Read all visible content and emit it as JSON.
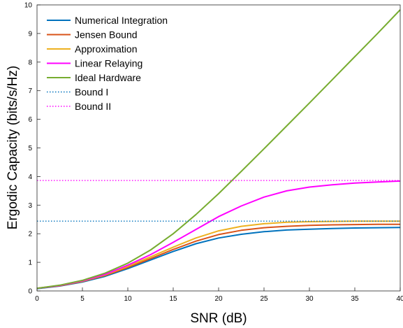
{
  "chart_data": {
    "type": "line",
    "xlabel": "SNR (dB)",
    "ylabel": "Ergodic Capacity (bits/s/Hz)",
    "xlim": [
      0,
      40
    ],
    "ylim": [
      0,
      10
    ],
    "x_ticks": [
      "0",
      "5",
      "10",
      "15",
      "20",
      "25",
      "30",
      "35",
      "40"
    ],
    "y_ticks": [
      "0",
      "1",
      "2",
      "3",
      "4",
      "5",
      "6",
      "7",
      "8",
      "9",
      "10"
    ],
    "grid": false,
    "legend_position": "top-left",
    "series": [
      {
        "name": "Numerical Integration",
        "color": "#0072BD",
        "style": "solid",
        "x": [
          0,
          2.5,
          5,
          7.5,
          10,
          12.5,
          15,
          17.5,
          20,
          22.5,
          25,
          27.5,
          30,
          32.5,
          35,
          37.5,
          40
        ],
        "y": [
          0.08,
          0.17,
          0.31,
          0.51,
          0.78,
          1.08,
          1.38,
          1.65,
          1.85,
          1.98,
          2.07,
          2.13,
          2.16,
          2.18,
          2.2,
          2.21,
          2.22
        ]
      },
      {
        "name": "Jensen Bound",
        "color": "#D95319",
        "style": "solid",
        "x": [
          0,
          2.5,
          5,
          7.5,
          10,
          12.5,
          15,
          17.5,
          20,
          22.5,
          25,
          27.5,
          30,
          32.5,
          35,
          37.5,
          40
        ],
        "y": [
          0.09,
          0.18,
          0.33,
          0.54,
          0.82,
          1.13,
          1.45,
          1.74,
          1.97,
          2.12,
          2.21,
          2.26,
          2.29,
          2.31,
          2.32,
          2.33,
          2.33
        ]
      },
      {
        "name": "Approximation",
        "color": "#EDB120",
        "style": "solid",
        "x": [
          0,
          2.5,
          5,
          7.5,
          10,
          12.5,
          15,
          17.5,
          20,
          22.5,
          25,
          27.5,
          30,
          32.5,
          35,
          37.5,
          40
        ],
        "y": [
          0.09,
          0.19,
          0.34,
          0.56,
          0.86,
          1.19,
          1.53,
          1.85,
          2.1,
          2.26,
          2.35,
          2.4,
          2.42,
          2.43,
          2.44,
          2.44,
          2.44
        ]
      },
      {
        "name": "Linear Relaying",
        "color": "#FF00FF",
        "style": "solid",
        "x": [
          0,
          2.5,
          5,
          7.5,
          10,
          12.5,
          15,
          17.5,
          20,
          22.5,
          25,
          27.5,
          30,
          32.5,
          35,
          37.5,
          40
        ],
        "y": [
          0.09,
          0.19,
          0.35,
          0.58,
          0.9,
          1.27,
          1.7,
          2.15,
          2.6,
          2.97,
          3.28,
          3.5,
          3.63,
          3.71,
          3.77,
          3.81,
          3.84
        ]
      },
      {
        "name": "Ideal Hardware",
        "color": "#77AC30",
        "style": "solid",
        "x": [
          0,
          2.5,
          5,
          7.5,
          10,
          12.5,
          15,
          17.5,
          20,
          22.5,
          25,
          27.5,
          30,
          32.5,
          35,
          37.5,
          40
        ],
        "y": [
          0.09,
          0.2,
          0.37,
          0.62,
          0.97,
          1.43,
          2.0,
          2.67,
          3.4,
          4.18,
          4.97,
          5.77,
          6.57,
          7.38,
          8.19,
          9.0,
          9.83
        ]
      },
      {
        "name": "Bound I",
        "color": "#0072BD",
        "style": "dotted",
        "x": [
          0,
          40
        ],
        "y": [
          2.44,
          2.44
        ]
      },
      {
        "name": "Bound II",
        "color": "#FF00FF",
        "style": "dotted",
        "x": [
          0,
          40
        ],
        "y": [
          3.86,
          3.86
        ]
      }
    ]
  }
}
